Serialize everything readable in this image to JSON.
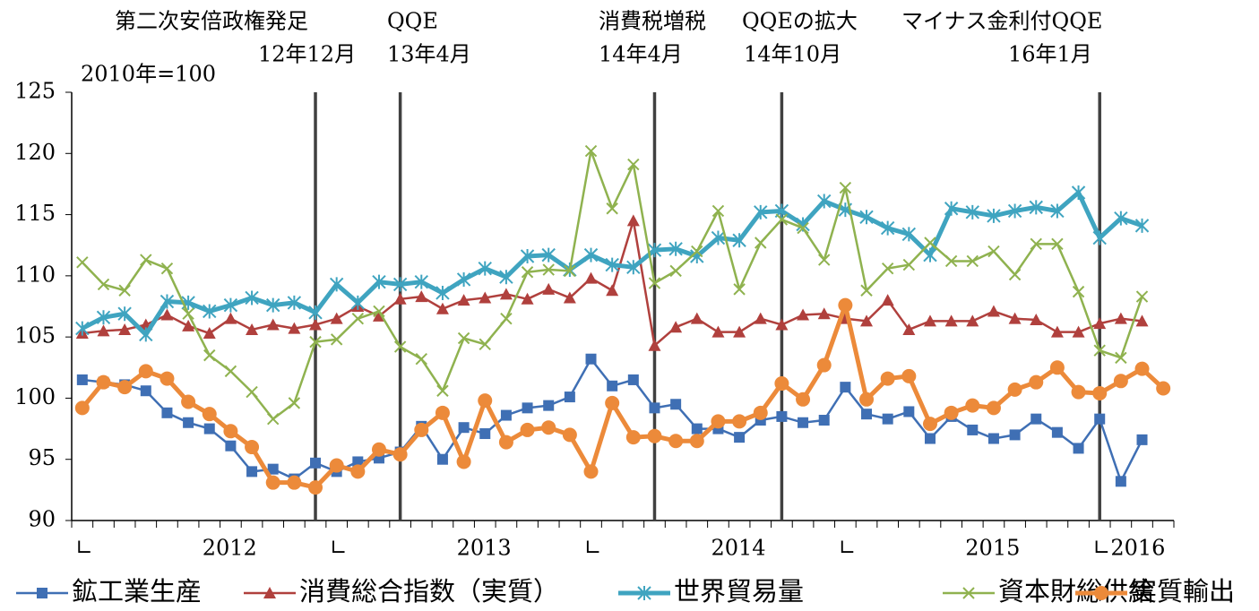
{
  "chart_data": {
    "type": "line",
    "unit_label": "2010年=100",
    "annotations": [
      {
        "label": "第二次安倍政権発足",
        "date": "12年12月"
      },
      {
        "label": "QQE",
        "date": "13年4月"
      },
      {
        "label": "消費税増税",
        "date": "14年4月"
      },
      {
        "label": "QQEの拡大",
        "date": "14年10月"
      },
      {
        "label": "マイナス金利付QQE",
        "date": "16年1月"
      }
    ],
    "categories": [
      "∟",
      null,
      null,
      null,
      null,
      null,
      "2012",
      null,
      null,
      null,
      null,
      null,
      "∟",
      null,
      null,
      null,
      null,
      null,
      "2013",
      null,
      null,
      null,
      null,
      null,
      "∟",
      null,
      null,
      null,
      null,
      null,
      "2014",
      null,
      null,
      null,
      null,
      null,
      "∟",
      null,
      null,
      null,
      null,
      null,
      "2015",
      null,
      null,
      null,
      null,
      null,
      "∟2016",
      null,
      null,
      null
    ],
    "ylim": [
      90,
      125
    ],
    "yticks": [
      90,
      95,
      100,
      105,
      110,
      115,
      120,
      125
    ],
    "series": [
      {
        "name": "鉱工業生産",
        "color": "#3f6fb4",
        "marker": "square",
        "values": [
          101.5,
          101.3,
          101.1,
          100.6,
          98.8,
          98.0,
          97.5,
          96.1,
          94.0,
          94.2,
          93.4,
          94.7,
          94.0,
          94.8,
          95.1,
          95.6,
          97.7,
          95.0,
          97.6,
          97.1,
          98.6,
          99.2,
          99.4,
          100.1,
          103.2,
          101.0,
          101.5,
          99.2,
          99.5,
          97.5,
          97.5,
          96.8,
          98.2,
          98.5,
          98.0,
          98.2,
          100.9,
          98.7,
          98.3,
          98.9,
          96.7,
          98.5,
          97.4,
          96.7,
          97.0,
          98.3,
          97.2,
          95.9,
          98.3,
          93.2,
          96.6,
          null
        ]
      },
      {
        "name": "消費総合指数（実質）",
        "color": "#b0403d",
        "marker": "triangle",
        "values": [
          105.3,
          105.5,
          105.6,
          106.0,
          106.8,
          105.9,
          105.3,
          106.5,
          105.6,
          106.0,
          105.7,
          106.0,
          106.5,
          107.5,
          106.7,
          108.1,
          108.3,
          107.3,
          108.0,
          108.2,
          108.5,
          108.1,
          108.9,
          108.2,
          109.8,
          108.8,
          114.5,
          104.3,
          105.8,
          106.5,
          105.4,
          105.4,
          106.5,
          106.0,
          106.8,
          106.9,
          106.5,
          106.3,
          108.0,
          105.6,
          106.3,
          106.3,
          106.3,
          107.1,
          106.5,
          106.4,
          105.4,
          105.4,
          106.1,
          106.5,
          106.3,
          null
        ]
      },
      {
        "name": "世界貿易量",
        "color": "#3fa4c0",
        "marker": "asterisk",
        "values": [
          105.7,
          106.6,
          106.9,
          105.2,
          107.9,
          107.8,
          107.1,
          107.6,
          108.2,
          107.6,
          107.8,
          107.0,
          109.3,
          107.8,
          109.5,
          109.3,
          109.5,
          108.6,
          109.7,
          110.6,
          109.9,
          111.6,
          111.7,
          110.5,
          111.7,
          110.9,
          110.7,
          112.1,
          112.2,
          111.6,
          113.1,
          112.9,
          115.2,
          115.3,
          114.2,
          116.1,
          115.4,
          114.8,
          113.9,
          113.4,
          111.7,
          115.5,
          115.2,
          114.9,
          115.3,
          115.6,
          115.3,
          116.8,
          113.1,
          114.7,
          114.1,
          null
        ]
      },
      {
        "name": "資本財総供給",
        "color": "#8fb24f",
        "marker": "x",
        "values": [
          111.1,
          109.3,
          108.8,
          111.3,
          110.6,
          106.9,
          103.5,
          102.2,
          100.5,
          98.3,
          99.6,
          104.6,
          104.8,
          106.5,
          107.1,
          104.2,
          103.2,
          100.6,
          104.9,
          104.4,
          106.5,
          110.3,
          110.5,
          110.4,
          120.2,
          115.5,
          119.1,
          109.4,
          110.4,
          112.0,
          115.3,
          108.9,
          112.7,
          114.6,
          113.9,
          111.3,
          117.2,
          108.8,
          110.6,
          110.9,
          112.7,
          111.2,
          111.2,
          112.0,
          110.1,
          112.6,
          112.6,
          108.7,
          103.9,
          103.3,
          108.3,
          null
        ]
      },
      {
        "name": "実質輸出",
        "color": "#ec8a3a",
        "marker": "circle",
        "values": [
          99.2,
          101.3,
          100.9,
          102.2,
          101.6,
          99.7,
          98.7,
          97.3,
          96.0,
          93.1,
          93.1,
          92.7,
          94.5,
          94.0,
          95.8,
          95.4,
          97.4,
          98.8,
          94.8,
          99.8,
          96.4,
          97.4,
          97.6,
          97.0,
          94.0,
          99.6,
          96.8,
          96.9,
          96.5,
          96.5,
          98.1,
          98.1,
          98.8,
          101.2,
          99.9,
          102.7,
          107.6,
          99.9,
          101.6,
          101.8,
          97.9,
          98.8,
          99.4,
          99.2,
          100.7,
          101.3,
          102.5,
          100.5,
          100.4,
          101.4,
          102.4,
          100.8
        ]
      }
    ]
  }
}
